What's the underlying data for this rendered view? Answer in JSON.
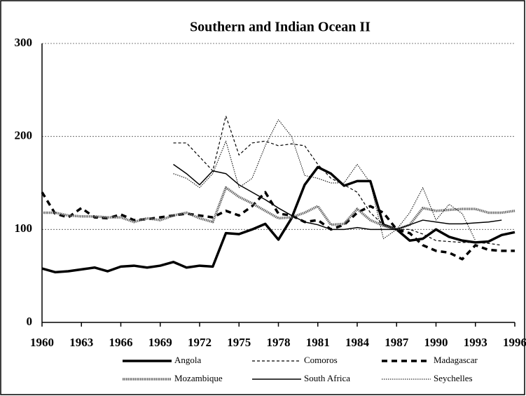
{
  "chart_data": {
    "type": "line",
    "title": "Southern and Indian Ocean II",
    "x": [
      1960,
      1961,
      1962,
      1963,
      1964,
      1965,
      1966,
      1967,
      1968,
      1969,
      1970,
      1971,
      1972,
      1973,
      1974,
      1975,
      1976,
      1977,
      1978,
      1979,
      1980,
      1981,
      1982,
      1983,
      1984,
      1985,
      1986,
      1987,
      1988,
      1989,
      1990,
      1991,
      1992,
      1993,
      1994,
      1995,
      1996
    ],
    "xlim": [
      1960,
      1996
    ],
    "xticks": [
      1960,
      1963,
      1966,
      1969,
      1972,
      1975,
      1978,
      1981,
      1984,
      1987,
      1990,
      1993,
      1996
    ],
    "ylim": [
      0,
      300
    ],
    "yticks": [
      0,
      100,
      200,
      300
    ],
    "grid": true,
    "series": [
      {
        "name": "Angola",
        "color": "#000000",
        "values": [
          58,
          54,
          55,
          57,
          59,
          55,
          60,
          61,
          59,
          61,
          65,
          59,
          61,
          60,
          96,
          95,
          100,
          106,
          89,
          112,
          148,
          167,
          160,
          147,
          152,
          152,
          105,
          100,
          88,
          90,
          100,
          92,
          88,
          86,
          87,
          94,
          97
        ]
      },
      {
        "name": "Comoros",
        "color": "#000000",
        "values": [
          null,
          null,
          null,
          null,
          null,
          null,
          null,
          null,
          null,
          null,
          193,
          193,
          178,
          163,
          222,
          180,
          193,
          195,
          190,
          192,
          190,
          170,
          155,
          148,
          140,
          118,
          105,
          100,
          100,
          95,
          88,
          87,
          86,
          86,
          85,
          83,
          null
        ]
      },
      {
        "name": "Madagascar",
        "color": "#000000",
        "values": [
          140,
          117,
          113,
          123,
          113,
          112,
          116,
          110,
          111,
          113,
          115,
          117,
          115,
          113,
          120,
          115,
          125,
          140,
          117,
          115,
          108,
          110,
          100,
          105,
          118,
          125,
          118,
          100,
          96,
          83,
          77,
          75,
          68,
          83,
          78,
          77,
          77
        ]
      },
      {
        "name": "Mozambique",
        "color": "#666666",
        "values": [
          118,
          118,
          115,
          114,
          114,
          113,
          113,
          108,
          112,
          110,
          115,
          118,
          112,
          108,
          145,
          135,
          128,
          120,
          112,
          113,
          118,
          125,
          105,
          106,
          122,
          110,
          104,
          100,
          105,
          123,
          120,
          121,
          122,
          122,
          118,
          118,
          120
        ]
      },
      {
        "name": "South Africa",
        "color": "#000000",
        "values": [
          null,
          null,
          null,
          null,
          null,
          null,
          null,
          null,
          null,
          null,
          170,
          160,
          148,
          163,
          160,
          148,
          140,
          132,
          123,
          115,
          108,
          105,
          100,
          100,
          102,
          100,
          100,
          100,
          105,
          110,
          108,
          106,
          106,
          107,
          108,
          110,
          null
        ]
      },
      {
        "name": "Seychelles",
        "color": "#000000",
        "values": [
          null,
          null,
          null,
          null,
          null,
          null,
          null,
          null,
          null,
          null,
          160,
          155,
          145,
          160,
          195,
          145,
          155,
          190,
          218,
          200,
          158,
          155,
          150,
          150,
          170,
          150,
          90,
          100,
          118,
          145,
          110,
          127,
          117,
          88,
          null,
          null,
          null
        ]
      }
    ]
  }
}
